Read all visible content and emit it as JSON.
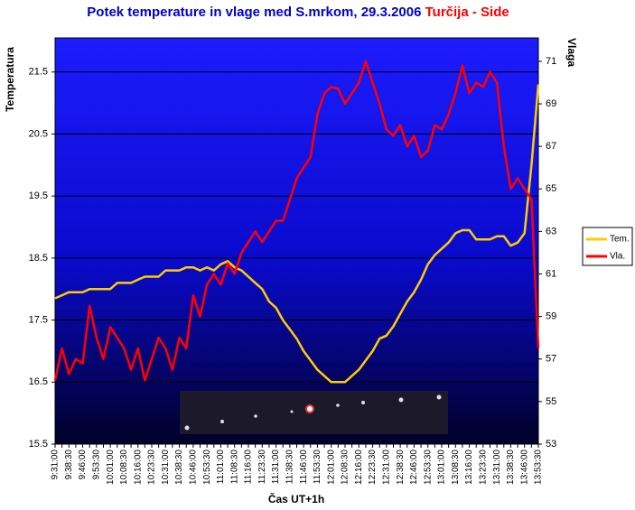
{
  "chart_data": {
    "type": "line",
    "title": "Potek temperature in vlage med S.mrkom, 29.3.2006",
    "title_location": "Turčija - Side",
    "title_color": "#0000cc",
    "title_location_color": "#ff0000",
    "xlabel": "Čas UT+1h",
    "ylabel": "Temperatura",
    "y2label": "Vlaga",
    "grid": true,
    "legend": "right",
    "ylim": [
      15.5,
      22.05
    ],
    "yticks": [
      15.5,
      16.5,
      17.5,
      18.5,
      19.5,
      20.5,
      21.5
    ],
    "y2lim": [
      53,
      72.1
    ],
    "y2ticks": [
      53,
      55,
      57,
      59,
      61,
      63,
      65,
      67,
      69,
      71
    ],
    "categories": [
      "9:31:00",
      null,
      "9:38:30",
      null,
      "9:46:00",
      null,
      "9:53:30",
      null,
      "10:01:00",
      null,
      "10:08:30",
      null,
      "10:16:00",
      null,
      "10:23:30",
      null,
      "10:31:00",
      null,
      "10:38:30",
      null,
      "10:46:00",
      null,
      "10:53:30",
      null,
      "11:01:00",
      null,
      "11:08:30",
      null,
      "11:16:00",
      null,
      "11:23:30",
      null,
      "11:31:00",
      null,
      "11:38:30",
      null,
      "11:46:00",
      null,
      "11:53:30",
      null,
      "12:01:00",
      null,
      "12:08:30",
      null,
      "12:16:00",
      null,
      "12:23:30",
      null,
      "12:31:00",
      null,
      "12:38:30",
      null,
      "12:46:00",
      null,
      "12:53:30",
      null,
      "13:01:00",
      null,
      "13:08:30",
      null,
      "13:16:00",
      null,
      "13:23:30",
      null,
      "13:31:00",
      null,
      "13:38:30",
      null,
      "13:46:00",
      null,
      "13:53:30"
    ],
    "series": [
      {
        "name": "Tem.",
        "color": "#ffcc00",
        "values": [
          17.85,
          17.9,
          17.95,
          17.95,
          17.95,
          18.0,
          18.0,
          18.0,
          18.0,
          18.1,
          18.1,
          18.1,
          18.15,
          18.2,
          18.2,
          18.2,
          18.3,
          18.3,
          18.3,
          18.35,
          18.35,
          18.3,
          18.35,
          18.3,
          18.4,
          18.45,
          18.35,
          18.3,
          18.2,
          18.1,
          18.0,
          17.8,
          17.7,
          17.5,
          17.35,
          17.2,
          17.0,
          16.85,
          16.7,
          16.6,
          16.5,
          16.5,
          16.5,
          16.6,
          16.7,
          16.85,
          17.0,
          17.2,
          17.25,
          17.4,
          17.6,
          17.8,
          17.95,
          18.15,
          18.4,
          18.55,
          18.65,
          18.75,
          18.9,
          18.95,
          18.95,
          18.8,
          18.8,
          18.8,
          18.85,
          18.85,
          18.7,
          18.75,
          18.9,
          20.0,
          21.3
        ]
      },
      {
        "name": "Vla.",
        "color": "#ff0000",
        "axis": "y2",
        "values": [
          56.0,
          57.5,
          56.3,
          57.0,
          56.8,
          59.5,
          58.0,
          57.0,
          58.5,
          58.0,
          57.5,
          56.5,
          57.5,
          56.0,
          57.0,
          58.0,
          57.5,
          56.5,
          58.0,
          57.5,
          60.0,
          59.0,
          60.5,
          61.0,
          60.5,
          61.5,
          61.0,
          62.0,
          62.5,
          63.0,
          62.5,
          63.0,
          63.5,
          63.5,
          64.5,
          65.5,
          66.0,
          66.5,
          68.5,
          69.5,
          69.8,
          69.7,
          69.0,
          69.5,
          70.0,
          71.0,
          70.0,
          69.0,
          67.8,
          67.5,
          68.0,
          67.0,
          67.5,
          66.5,
          66.8,
          68.0,
          67.8,
          68.5,
          69.5,
          70.8,
          69.5,
          70.0,
          69.8,
          70.5,
          70.0,
          67.0,
          65.0,
          65.5,
          65.0,
          64.5,
          57.5
        ]
      }
    ]
  }
}
